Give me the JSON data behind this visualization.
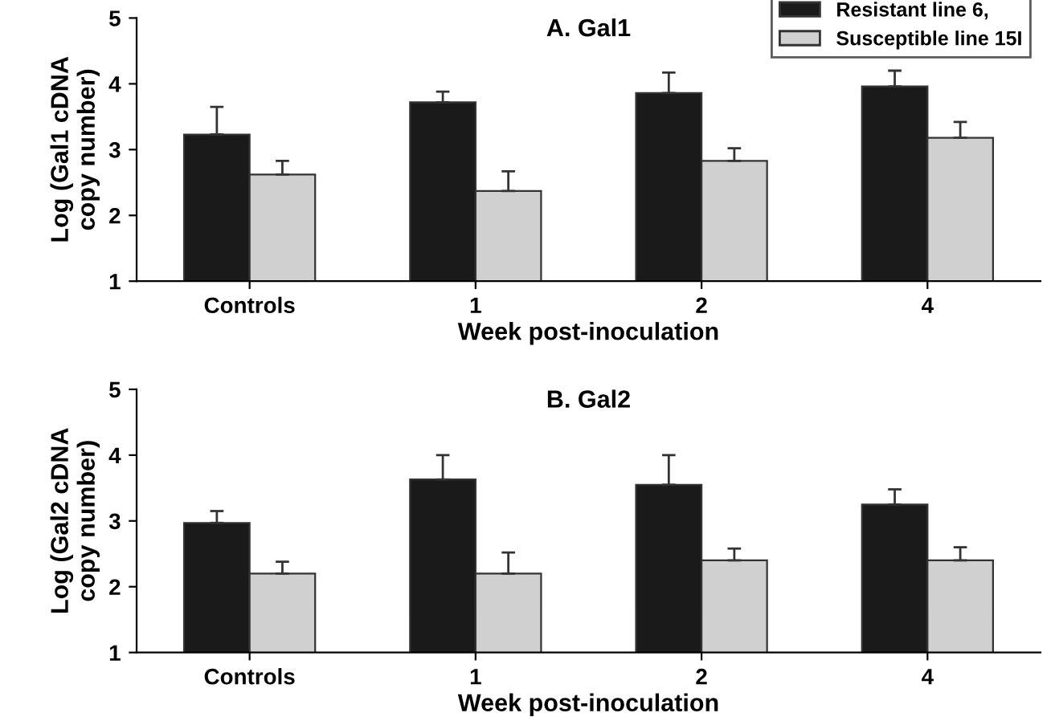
{
  "chart_data": [
    {
      "type": "bar",
      "title": "A. Gal1",
      "xlabel": "Week post-inoculation",
      "ylabel": "Log (Gal1 cDNA\ncopy number)",
      "categories": [
        "Controls",
        "1",
        "2",
        "4"
      ],
      "ylim": [
        1,
        5
      ],
      "yticks": [
        1,
        2,
        3,
        4,
        5
      ],
      "grid": false,
      "legend": "top right",
      "series": [
        {
          "name": "Resistant line 6,",
          "color": "#1a1a1a",
          "values": [
            3.23,
            3.72,
            3.86,
            3.96
          ],
          "errors": [
            [
              3.23,
              3.65
            ],
            [
              3.72,
              3.88
            ],
            [
              3.86,
              4.17
            ],
            [
              3.96,
              4.2
            ]
          ]
        },
        {
          "name": "Susceptible line 15I",
          "color": "#d0d0d0",
          "values": [
            2.62,
            2.37,
            2.83,
            3.18
          ],
          "errors": [
            [
              2.62,
              2.83
            ],
            [
              2.37,
              2.67
            ],
            [
              2.83,
              3.02
            ],
            [
              3.18,
              3.42
            ]
          ]
        }
      ]
    },
    {
      "type": "bar",
      "title": "B. Gal2",
      "xlabel": "Week post-inoculation",
      "ylabel": "Log (Gal2 cDNA\ncopy number)",
      "categories": [
        "Controls",
        "1",
        "2",
        "4"
      ],
      "ylim": [
        1,
        5
      ],
      "yticks": [
        1,
        2,
        3,
        4,
        5
      ],
      "grid": false,
      "legend": false,
      "series": [
        {
          "color": "#1a1a1a",
          "values": [
            2.97,
            3.63,
            3.55,
            3.25
          ],
          "errors": [
            [
              2.97,
              3.15
            ],
            [
              3.63,
              4.0
            ],
            [
              3.55,
              4.0
            ],
            [
              3.25,
              3.48
            ]
          ]
        },
        {
          "color": "#d0d0d0",
          "values": [
            2.2,
            2.2,
            2.4,
            2.4
          ],
          "errors": [
            [
              2.2,
              2.38
            ],
            [
              2.2,
              2.52
            ],
            [
              2.4,
              2.58
            ],
            [
              2.4,
              2.6
            ]
          ]
        }
      ]
    }
  ]
}
